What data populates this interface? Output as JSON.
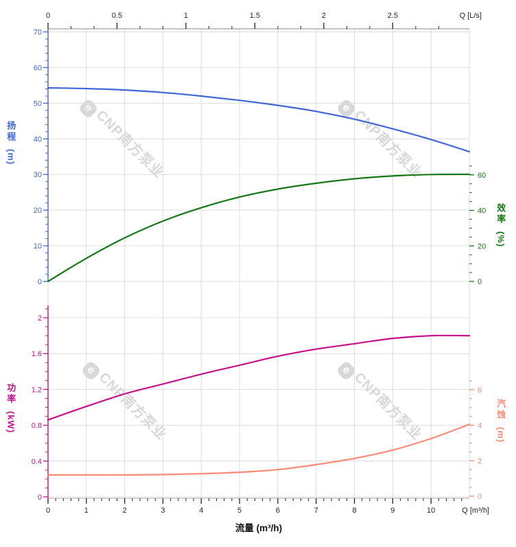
{
  "chart_data": [
    {
      "type": "line",
      "name": "head-efficiency-chart",
      "x": [
        0,
        1,
        2,
        3,
        4,
        5,
        6,
        7,
        8,
        9,
        10,
        11
      ],
      "x_unit": "m³/h",
      "top_axis": {
        "label": "Q [L/s]",
        "ticks": [
          0,
          0.5,
          1,
          1.5,
          2,
          2.5
        ]
      },
      "series": [
        {
          "name": "扬程",
          "unit": "m",
          "axis": "left",
          "color": "#3f66d8",
          "ylim": [
            0,
            70
          ],
          "values": [
            54.3,
            54.1,
            53.7,
            53.0,
            52.0,
            50.8,
            49.4,
            47.7,
            45.5,
            42.8,
            39.8,
            36.4
          ]
        },
        {
          "name": "效率",
          "unit": "%",
          "axis": "right",
          "color": "#147814",
          "ylim": [
            0,
            60
          ],
          "values": [
            0,
            13,
            24.5,
            34,
            41.5,
            47.5,
            52,
            55.3,
            57.8,
            59.4,
            60.2,
            60.3
          ]
        }
      ]
    },
    {
      "type": "line",
      "name": "power-npsh-chart",
      "x": [
        0,
        1,
        2,
        3,
        4,
        5,
        6,
        7,
        8,
        9,
        10,
        11
      ],
      "x_unit": "m³/h",
      "bottom_axis": {
        "label": "Q [m³/h]",
        "ticks": [
          0,
          1,
          2,
          3,
          4,
          5,
          6,
          7,
          8,
          9,
          10
        ]
      },
      "series": [
        {
          "name": "功率",
          "unit": "kW",
          "axis": "left",
          "color": "#c5128a",
          "ylim": [
            0,
            2
          ],
          "values": [
            0.86,
            1.01,
            1.15,
            1.26,
            1.37,
            1.47,
            1.57,
            1.65,
            1.71,
            1.77,
            1.8,
            1.8
          ]
        },
        {
          "name": "汽蚀",
          "unit": "m",
          "axis": "right",
          "color": "#fa8a76",
          "ylim": [
            0,
            6
          ],
          "values": [
            1.2,
            1.2,
            1.2,
            1.22,
            1.27,
            1.35,
            1.5,
            1.78,
            2.13,
            2.6,
            3.25,
            4.05
          ]
        }
      ]
    }
  ],
  "axes": {
    "head": {
      "title": "扬程",
      "unit": "(m)",
      "color": "#3f66d8",
      "ticks": [
        0,
        10,
        20,
        30,
        40,
        50,
        60,
        70
      ]
    },
    "efficiency": {
      "title": "效率",
      "unit": "(%)",
      "color": "#147814",
      "ticks": [
        0,
        20,
        40,
        60
      ]
    },
    "power": {
      "title": "功率",
      "unit": "(kW)",
      "color": "#c5128a",
      "ticks": [
        0,
        0.4,
        0.8,
        1.2,
        1.6,
        2
      ]
    },
    "npsh": {
      "title": "汽蚀",
      "unit": "(m)",
      "color": "#fa8a76",
      "ticks": [
        0,
        2,
        4,
        6
      ]
    },
    "q_ls": {
      "label": "Q [L/s]",
      "ticks": [
        0,
        0.5,
        1,
        1.5,
        2,
        2.5
      ]
    },
    "q_m3h": {
      "label": "Q [m³/h]",
      "ticks": [
        0,
        1,
        2,
        3,
        4,
        5,
        6,
        7,
        8,
        9,
        10
      ]
    },
    "x_bottom_title": "流量 (m³/h)"
  },
  "watermark": {
    "logo": "e",
    "text": "CNP南方泵业"
  },
  "style_colors": {
    "grid": "#dcdcdc",
    "axis_gray": "#9b9b9b",
    "tick_black": "#222222"
  }
}
